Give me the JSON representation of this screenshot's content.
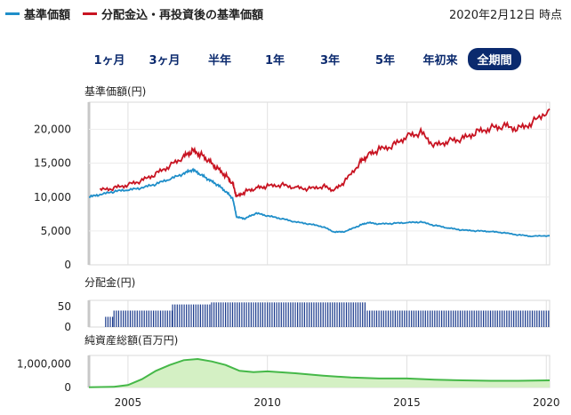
{
  "legend": {
    "nav_label": "基準価額",
    "reinvest_label": "分配金込・再投資後の基準価額",
    "nav_color": "#1f8ec9",
    "reinvest_color": "#c81422"
  },
  "as_of": "2020年2月12日 時点",
  "periods": [
    {
      "label": "1ヶ月",
      "active": false
    },
    {
      "label": "3ヶ月",
      "active": false
    },
    {
      "label": "半年",
      "active": false
    },
    {
      "label": "1年",
      "active": false
    },
    {
      "label": "3年",
      "active": false
    },
    {
      "label": "5年",
      "active": false
    },
    {
      "label": "年初来",
      "active": false
    },
    {
      "label": "全期間",
      "active": true
    }
  ],
  "chart_data": [
    {
      "type": "line",
      "ylabel": "基準価額(円)",
      "ylim": [
        0,
        24000
      ],
      "yticks": [
        "20,000",
        "15,000",
        "10,000",
        "5,000",
        "0"
      ],
      "ytick_values": [
        20000,
        15000,
        10000,
        5000,
        0
      ],
      "xlim": [
        2003.6,
        2020.12
      ],
      "series": [
        {
          "name": "基準価額",
          "x": [
            2003.6,
            2004.0,
            2004.5,
            2005.0,
            2005.5,
            2006.0,
            2006.5,
            2007.0,
            2007.3,
            2007.6,
            2007.9,
            2008.2,
            2008.5,
            2008.75,
            2008.9,
            2009.2,
            2009.6,
            2010.0,
            2010.5,
            2011.0,
            2011.5,
            2012.0,
            2012.4,
            2012.8,
            2013.3,
            2013.6,
            2014.0,
            2014.5,
            2015.0,
            2015.5,
            2016.0,
            2016.5,
            2017.0,
            2017.5,
            2018.0,
            2018.5,
            2019.0,
            2019.5,
            2020.12
          ],
          "values": [
            10000,
            10300,
            10800,
            11000,
            11300,
            11900,
            12600,
            13400,
            14000,
            13300,
            12500,
            11800,
            10800,
            9800,
            7000,
            6800,
            7600,
            7200,
            6800,
            6300,
            6000,
            5600,
            4800,
            4900,
            5800,
            6200,
            6000,
            6100,
            6200,
            6300,
            5800,
            5400,
            5100,
            5000,
            4900,
            4700,
            4400,
            4200,
            4300
          ]
        },
        {
          "name": "分配金込・再投資後の基準価額",
          "x": [
            2004.0,
            2004.5,
            2005.0,
            2005.5,
            2006.0,
            2006.5,
            2007.0,
            2007.3,
            2007.6,
            2007.9,
            2008.2,
            2008.5,
            2008.75,
            2008.9,
            2009.2,
            2009.6,
            2010.0,
            2010.5,
            2011.0,
            2011.5,
            2012.0,
            2012.4,
            2012.8,
            2013.3,
            2013.6,
            2014.0,
            2014.5,
            2015.0,
            2015.5,
            2016.0,
            2016.5,
            2017.0,
            2017.5,
            2018.0,
            2018.5,
            2019.0,
            2019.5,
            2020.12
          ],
          "values": [
            11000,
            11300,
            11800,
            12400,
            13400,
            14600,
            15900,
            16800,
            16300,
            15300,
            14200,
            13200,
            12000,
            10000,
            10800,
            11300,
            11600,
            11800,
            11400,
            11200,
            11600,
            11000,
            12400,
            15000,
            16200,
            17000,
            17600,
            19000,
            19500,
            17600,
            18300,
            18600,
            19600,
            20200,
            20500,
            20100,
            21000,
            23000
          ]
        }
      ]
    },
    {
      "type": "bar",
      "ylabel": "分配金(円)",
      "yticks": [
        "50",
        "0"
      ],
      "ytick_values": [
        50,
        0
      ],
      "ylim": [
        0,
        65
      ],
      "xlim": [
        2003.6,
        2020.12
      ],
      "series": [
        {
          "name": "分配金",
          "segments": [
            {
              "from": 2004.2,
              "to": 2004.5,
              "value": 25
            },
            {
              "from": 2004.5,
              "to": 2006.6,
              "value": 40
            },
            {
              "from": 2006.6,
              "to": 2008.0,
              "value": 55
            },
            {
              "from": 2008.0,
              "to": 2013.5,
              "value": 60
            },
            {
              "from": 2013.5,
              "to": 2020.12,
              "value": 40
            }
          ],
          "interval": 0.0833
        }
      ]
    },
    {
      "type": "area",
      "ylabel": "純資産総額(百万円)",
      "yticks": [
        "1,000,000",
        "0"
      ],
      "ytick_values": [
        1000000,
        0
      ],
      "ylim": [
        0,
        1350000
      ],
      "xlim": [
        2003.6,
        2020.12
      ],
      "xticks": [
        "2005",
        "2010",
        "2015",
        "2020"
      ],
      "xtick_values": [
        2005,
        2010,
        2015,
        2020
      ],
      "series": [
        {
          "name": "純資産総額",
          "x": [
            2003.6,
            2004.5,
            2005.0,
            2005.5,
            2006.0,
            2006.5,
            2007.0,
            2007.5,
            2008.0,
            2008.5,
            2009.0,
            2009.5,
            2010.0,
            2011.0,
            2012.0,
            2013.0,
            2014.0,
            2015.0,
            2016.0,
            2017.0,
            2018.0,
            2019.0,
            2020.12
          ],
          "values": [
            10000,
            30000,
            100000,
            350000,
            700000,
            950000,
            1150000,
            1200000,
            1100000,
            950000,
            700000,
            650000,
            680000,
            600000,
            500000,
            420000,
            380000,
            380000,
            330000,
            300000,
            280000,
            280000,
            300000
          ]
        }
      ]
    }
  ]
}
